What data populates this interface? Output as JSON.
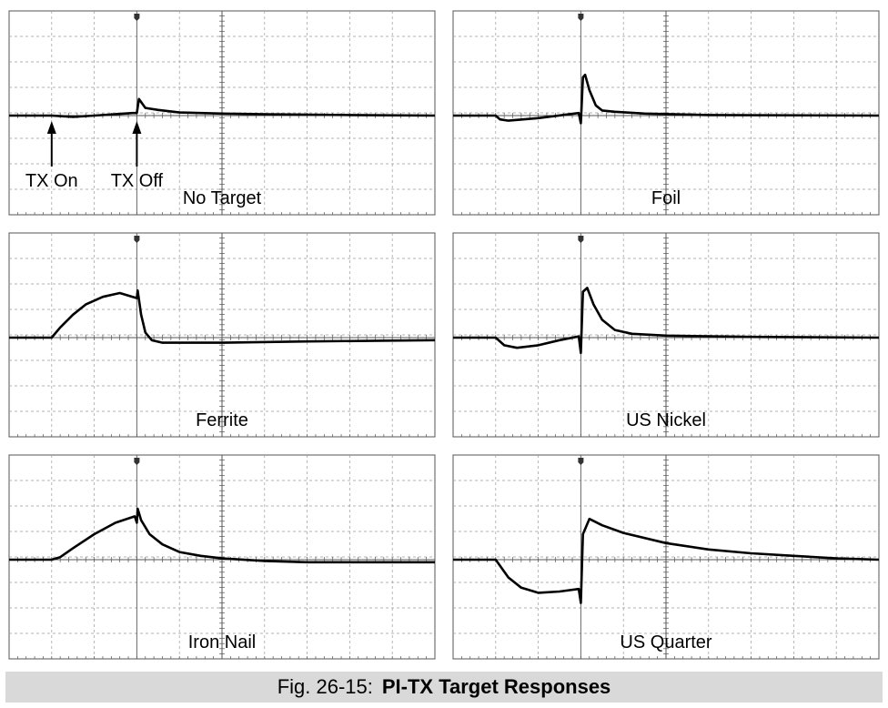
{
  "chart_data": [
    {
      "type": "line",
      "title": "No Target",
      "annotations": [
        {
          "label": "TX On",
          "x": 1
        },
        {
          "label": "TX Off",
          "x": 3
        }
      ],
      "xlim": [
        0,
        10
      ],
      "ylim": [
        -4,
        4
      ],
      "grid": true,
      "series": [
        {
          "x": [
            0,
            1,
            1.5,
            2,
            2.9,
            2.95,
            3.0,
            3.05,
            3.2,
            3.5,
            4,
            5,
            6,
            8,
            10
          ],
          "y": [
            0,
            0,
            -0.05,
            0,
            0.1,
            0.1,
            0.1,
            0.65,
            0.3,
            0.22,
            0.12,
            0.08,
            0.05,
            0.02,
            0
          ]
        }
      ]
    },
    {
      "type": "line",
      "title": "Foil",
      "xlim": [
        0,
        10
      ],
      "ylim": [
        -4,
        4
      ],
      "grid": true,
      "series": [
        {
          "x": [
            0,
            1,
            1.1,
            1.3,
            2,
            2.95,
            3.0,
            3.05,
            3.1,
            3.2,
            3.35,
            3.5,
            3.8,
            4.5,
            6,
            10
          ],
          "y": [
            0,
            0,
            -0.15,
            -0.2,
            -0.1,
            0.1,
            -0.3,
            1.5,
            1.6,
            1.0,
            0.4,
            0.2,
            0.15,
            0.08,
            0.02,
            0
          ]
        }
      ]
    },
    {
      "type": "line",
      "title": "Ferrite",
      "xlim": [
        0,
        10
      ],
      "ylim": [
        -4,
        4
      ],
      "grid": true,
      "series": [
        {
          "x": [
            0,
            1,
            1.2,
            1.5,
            1.8,
            2.2,
            2.6,
            3.0,
            3.02,
            3.1,
            3.2,
            3.35,
            3.6,
            5,
            7,
            10
          ],
          "y": [
            0,
            0,
            0.4,
            0.9,
            1.3,
            1.6,
            1.75,
            1.55,
            1.85,
            0.9,
            0.2,
            -0.1,
            -0.2,
            -0.2,
            -0.15,
            -0.1
          ]
        }
      ]
    },
    {
      "type": "line",
      "title": "US Nickel",
      "xlim": [
        0,
        10
      ],
      "ylim": [
        -4,
        4
      ],
      "grid": true,
      "series": [
        {
          "x": [
            0,
            1,
            1.2,
            1.5,
            2,
            2.5,
            2.95,
            3.0,
            3.05,
            3.15,
            3.3,
            3.5,
            3.8,
            4.2,
            5,
            7,
            10
          ],
          "y": [
            0,
            0,
            -0.3,
            -0.4,
            -0.3,
            -0.1,
            0.05,
            -0.6,
            1.8,
            1.95,
            1.3,
            0.7,
            0.3,
            0.15,
            0.08,
            0.03,
            0
          ]
        }
      ]
    },
    {
      "type": "line",
      "title": "Iron Nail",
      "xlim": [
        0,
        10
      ],
      "ylim": [
        -4,
        4
      ],
      "grid": true,
      "series": [
        {
          "x": [
            0,
            1,
            1.2,
            1.5,
            2,
            2.5,
            2.95,
            3.0,
            3.02,
            3.1,
            3.3,
            3.6,
            4,
            4.5,
            5,
            6,
            7,
            10
          ],
          "y": [
            0,
            0,
            0.1,
            0.45,
            1.0,
            1.45,
            1.7,
            1.45,
            2.0,
            1.55,
            1.0,
            0.6,
            0.3,
            0.15,
            0.05,
            -0.05,
            -0.1,
            -0.1
          ]
        }
      ]
    },
    {
      "type": "line",
      "title": "US Quarter",
      "xlim": [
        0,
        10
      ],
      "ylim": [
        -4,
        4
      ],
      "grid": true,
      "series": [
        {
          "x": [
            0,
            1,
            1.3,
            1.6,
            2.0,
            2.5,
            2.95,
            3.0,
            3.05,
            3.2,
            3.5,
            4,
            5,
            6,
            7,
            8,
            9,
            10
          ],
          "y": [
            0,
            0,
            -0.7,
            -1.1,
            -1.3,
            -1.25,
            -1.15,
            -1.7,
            1.0,
            1.6,
            1.35,
            1.05,
            0.65,
            0.4,
            0.25,
            0.15,
            0.05,
            0
          ]
        }
      ]
    }
  ],
  "caption": {
    "number": "Fig. 26-15:",
    "title": "PI-TX Target Responses"
  }
}
